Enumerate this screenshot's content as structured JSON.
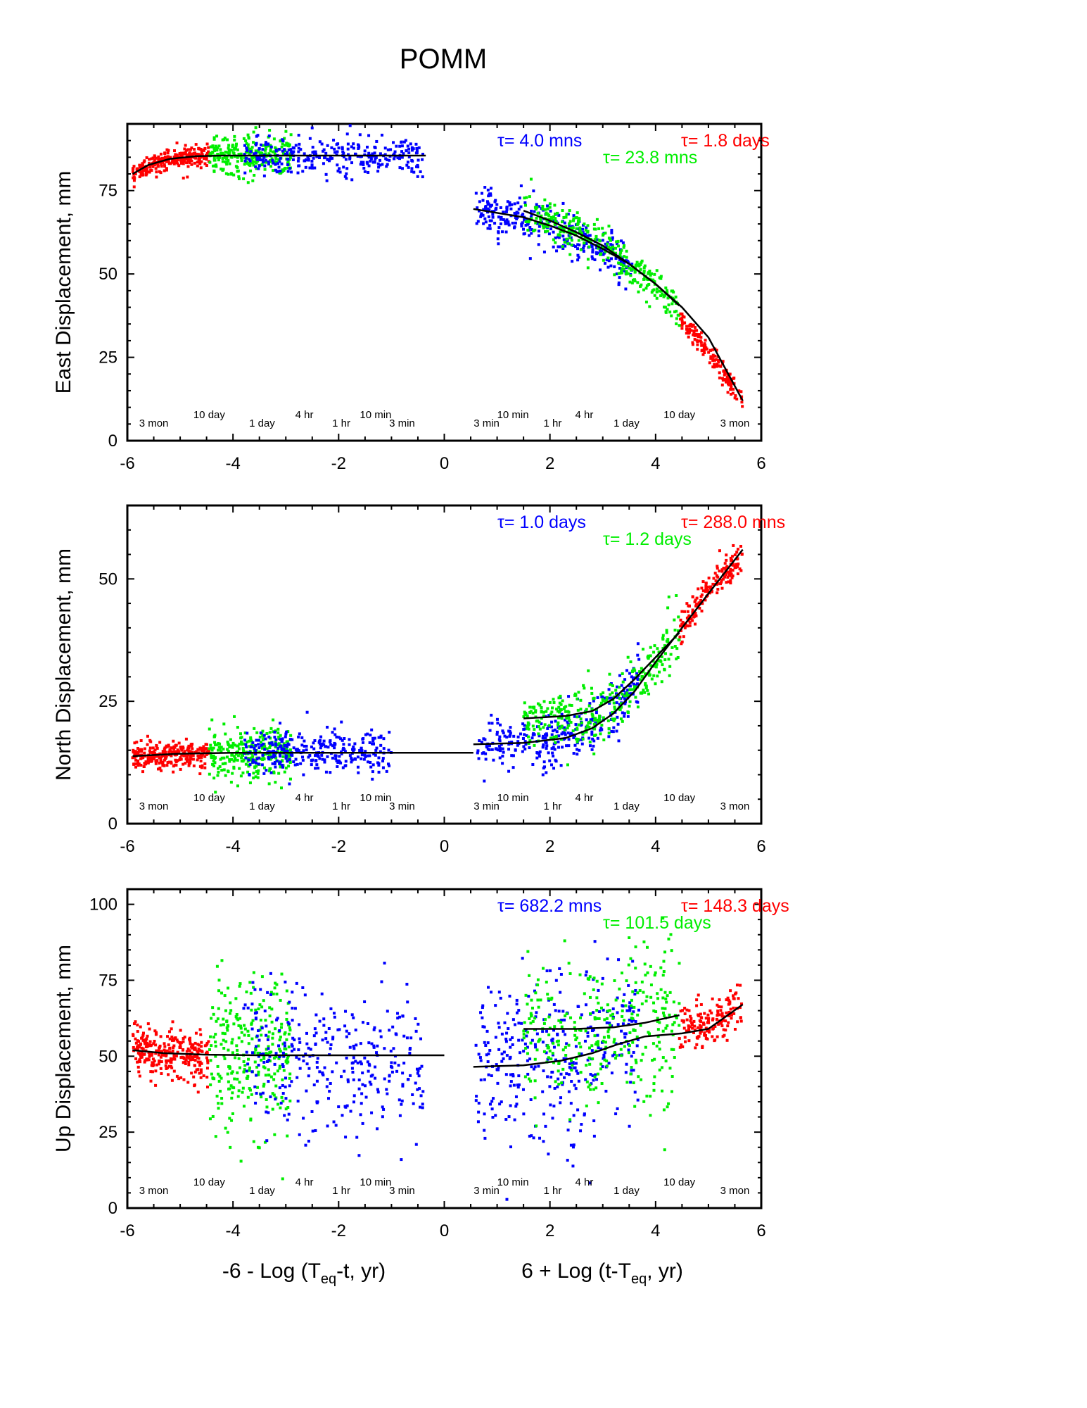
{
  "figure": {
    "title": "POMM",
    "xlabel_left": "-6 - Log (T",
    "xlabel_left_sub": "eq",
    "xlabel_left_tail": "-t, yr)",
    "xlabel_right": "6 + Log (t-T",
    "xlabel_right_sub": "eq",
    "xlabel_right_tail": ", yr)"
  },
  "colors": {
    "red": "#ff0000",
    "green": "#00ee00",
    "blue": "#0000ff",
    "fit": "#000000"
  },
  "chart_data": [
    {
      "type": "scatter",
      "ylabel": "East Displacement, mm",
      "xlim": [
        -6,
        6
      ],
      "ylim": [
        0,
        95
      ],
      "xticks": [
        -6,
        -4,
        -2,
        0,
        2,
        4,
        6
      ],
      "yticks": [
        0,
        25,
        50,
        75
      ],
      "time_labels_left": [
        "3 mon",
        "10 day",
        "1 day",
        "4 hr",
        "1 hr",
        "10 min",
        "3 min"
      ],
      "time_labels_right": [
        "3 min",
        "10 min",
        "1 hr",
        "4 hr",
        "1 day",
        "10 day",
        "3 mon"
      ],
      "tau": [
        {
          "text": "τ= 4.0 mns",
          "color": "blue"
        },
        {
          "text": "τ= 23.8 mns",
          "color": "green"
        },
        {
          "text": "τ= 1.8 days",
          "color": "red"
        }
      ],
      "series": [
        {
          "color": "red",
          "x_range": [
            -5.9,
            -4.45
          ],
          "trend": [
            [
              -5.9,
              80
            ],
            [
              -5.5,
              83.5
            ],
            [
              -5.0,
              85
            ],
            [
              -4.45,
              85.5
            ]
          ],
          "noise": 1.5,
          "n": 260
        },
        {
          "color": "green",
          "x_range": [
            -4.45,
            -2.9
          ],
          "trend": [
            [
              -4.45,
              85.5
            ],
            [
              -2.9,
              85.5
            ]
          ],
          "noise": 3.0,
          "n": 260
        },
        {
          "color": "blue",
          "x_range": [
            -3.8,
            -0.4
          ],
          "trend": [
            [
              -3.8,
              85.5
            ],
            [
              -0.4,
              85.5
            ]
          ],
          "noise": 3.0,
          "n": 300
        },
        {
          "color": "blue",
          "x_range": [
            0.6,
            3.6
          ],
          "trend": [
            [
              0.6,
              69
            ],
            [
              1.5,
              67
            ],
            [
              2.5,
              61
            ],
            [
              3.0,
              57
            ],
            [
              3.6,
              52
            ]
          ],
          "noise": 3.0,
          "n": 320
        },
        {
          "color": "green",
          "x_range": [
            1.5,
            4.45
          ],
          "trend": [
            [
              1.5,
              69
            ],
            [
              2.5,
              63
            ],
            [
              3.0,
              59
            ],
            [
              3.6,
              51
            ],
            [
              4.45,
              40
            ]
          ],
          "noise": 3.0,
          "n": 320
        },
        {
          "color": "red",
          "x_range": [
            4.45,
            5.65
          ],
          "trend": [
            [
              4.45,
              37
            ],
            [
              5.0,
              27
            ],
            [
              5.65,
              12
            ]
          ],
          "noise": 1.5,
          "n": 160
        }
      ],
      "fit_lines": [
        [
          [
            -5.9,
            80
          ],
          [
            -5.6,
            82.7
          ],
          [
            -5.2,
            84.5
          ],
          [
            -4.7,
            85.3
          ],
          [
            -4.2,
            85.5
          ],
          [
            -0.35,
            85.5
          ]
        ],
        [
          [
            0.55,
            69.5
          ],
          [
            1.5,
            67
          ],
          [
            2.0,
            64.5
          ],
          [
            2.5,
            61.5
          ],
          [
            3.0,
            57.5
          ],
          [
            3.5,
            53
          ],
          [
            4.0,
            47
          ],
          [
            4.5,
            40
          ],
          [
            5.0,
            31
          ],
          [
            5.65,
            12
          ]
        ],
        [
          [
            1.5,
            69
          ],
          [
            2.0,
            66
          ],
          [
            2.5,
            62.5
          ],
          [
            3.0,
            58.5
          ],
          [
            3.5,
            53
          ],
          [
            4.0,
            47
          ],
          [
            4.45,
            40.5
          ]
        ]
      ]
    },
    {
      "type": "scatter",
      "ylabel": "North Displacement, mm",
      "xlim": [
        -6,
        6
      ],
      "ylim": [
        0,
        65
      ],
      "xticks": [
        -6,
        -4,
        -2,
        0,
        2,
        4,
        6
      ],
      "yticks": [
        0,
        25,
        50
      ],
      "time_labels_left": [
        "3 mon",
        "10 day",
        "1 day",
        "4 hr",
        "1 hr",
        "10 min",
        "3 min"
      ],
      "time_labels_right": [
        "3 min",
        "10 min",
        "1 hr",
        "4 hr",
        "1 day",
        "10 day",
        "3 mon"
      ],
      "tau": [
        {
          "text": "τ= 1.0 days",
          "color": "blue"
        },
        {
          "text": "τ= 1.2 days",
          "color": "green"
        },
        {
          "text": "τ= 288.0 mns",
          "color": "red"
        }
      ],
      "series": [
        {
          "color": "red",
          "x_range": [
            -5.9,
            -4.45
          ],
          "trend": [
            [
              -5.9,
              13.5
            ],
            [
              -4.45,
              14.5
            ]
          ],
          "noise": 1.3,
          "n": 260
        },
        {
          "color": "green",
          "x_range": [
            -4.45,
            -2.9
          ],
          "trend": [
            [
              -4.45,
              14.5
            ],
            [
              -2.9,
              14.5
            ]
          ],
          "noise": 2.8,
          "n": 260
        },
        {
          "color": "blue",
          "x_range": [
            -3.8,
            -1.0
          ],
          "trend": [
            [
              -3.8,
              14.5
            ],
            [
              -1.0,
              14.5
            ]
          ],
          "noise": 2.2,
          "n": 300
        },
        {
          "color": "blue",
          "x_range": [
            0.6,
            3.7
          ],
          "trend": [
            [
              0.6,
              16
            ],
            [
              2.0,
              17
            ],
            [
              2.8,
              20
            ],
            [
              3.3,
              25
            ],
            [
              3.7,
              30
            ]
          ],
          "noise": 2.8,
          "n": 320
        },
        {
          "color": "green",
          "x_range": [
            1.5,
            4.45
          ],
          "trend": [
            [
              1.5,
              21
            ],
            [
              2.8,
              22
            ],
            [
              3.3,
              25
            ],
            [
              3.8,
              31
            ],
            [
              4.45,
              39
            ]
          ],
          "noise": 3.0,
          "n": 320
        },
        {
          "color": "red",
          "x_range": [
            4.45,
            5.65
          ],
          "trend": [
            [
              4.45,
              39
            ],
            [
              5.0,
              48
            ],
            [
              5.65,
              54
            ]
          ],
          "noise": 1.6,
          "n": 160
        }
      ],
      "fit_lines": [
        [
          [
            -5.9,
            13.8
          ],
          [
            -5.0,
            14.3
          ],
          [
            -4.0,
            14.5
          ],
          [
            0.55,
            14.5
          ]
        ],
        [
          [
            0.55,
            16.2
          ],
          [
            1.5,
            16.5
          ],
          [
            2.3,
            17.5
          ],
          [
            2.8,
            19.5
          ],
          [
            3.2,
            22.5
          ],
          [
            3.6,
            27
          ],
          [
            4.0,
            33
          ],
          [
            4.5,
            40
          ],
          [
            5.0,
            47
          ],
          [
            5.65,
            56
          ]
        ],
        [
          [
            1.5,
            21.5
          ],
          [
            2.3,
            22
          ],
          [
            2.8,
            23
          ],
          [
            3.2,
            25.5
          ],
          [
            3.6,
            29.5
          ],
          [
            4.0,
            34
          ],
          [
            4.45,
            39
          ]
        ]
      ]
    },
    {
      "type": "scatter",
      "ylabel": "Up Displacement, mm",
      "xlim": [
        -6,
        6
      ],
      "ylim": [
        0,
        105
      ],
      "xticks": [
        -6,
        -4,
        -2,
        0,
        2,
        4,
        6
      ],
      "yticks": [
        0,
        25,
        50,
        75,
        100
      ],
      "time_labels_left": [
        "3 mon",
        "10 day",
        "1 day",
        "4 hr",
        "1 hr",
        "10 min",
        "3 min"
      ],
      "time_labels_right": [
        "3 min",
        "10 min",
        "1 hr",
        "4 hr",
        "1 day",
        "10 day",
        "3 mon"
      ],
      "tau": [
        {
          "text": "τ= 682.2 mns",
          "color": "blue"
        },
        {
          "text": "τ= 101.5 days",
          "color": "green"
        },
        {
          "text": "τ= 148.3 days",
          "color": "red"
        }
      ],
      "series": [
        {
          "color": "red",
          "x_range": [
            -5.9,
            -4.45
          ],
          "trend": [
            [
              -5.9,
              52
            ],
            [
              -4.45,
              50
            ]
          ],
          "noise": 4.0,
          "n": 280
        },
        {
          "color": "green",
          "x_range": [
            -4.45,
            -2.9
          ],
          "trend": [
            [
              -4.45,
              50
            ],
            [
              -2.9,
              50
            ]
          ],
          "noise": 13.0,
          "n": 280
        },
        {
          "color": "blue",
          "x_range": [
            -3.8,
            -0.4
          ],
          "trend": [
            [
              -3.8,
              55
            ],
            [
              -3.0,
              50
            ],
            [
              -2.0,
              45
            ],
            [
              -0.4,
              45
            ]
          ],
          "noise": 12.0,
          "n": 320
        },
        {
          "color": "blue",
          "x_range": [
            0.6,
            3.7
          ],
          "trend": [
            [
              0.6,
              47
            ],
            [
              2.0,
              48
            ],
            [
              3.0,
              52
            ],
            [
              3.7,
              57
            ]
          ],
          "noise": 13.0,
          "n": 340
        },
        {
          "color": "green",
          "x_range": [
            1.5,
            4.45
          ],
          "trend": [
            [
              1.5,
              58
            ],
            [
              3.0,
              58
            ],
            [
              4.45,
              62
            ]
          ],
          "noise": 13.0,
          "n": 320
        },
        {
          "color": "red",
          "x_range": [
            4.45,
            5.65
          ],
          "trend": [
            [
              4.45,
              58
            ],
            [
              5.0,
              60
            ],
            [
              5.65,
              66
            ]
          ],
          "noise": 4.0,
          "n": 160
        }
      ],
      "fit_lines": [
        [
          [
            -5.9,
            52
          ],
          [
            -5.3,
            51
          ],
          [
            -4.5,
            50.5
          ],
          [
            -3.5,
            50.3
          ],
          [
            0.0,
            50.3
          ]
        ],
        [
          [
            0.55,
            46.5
          ],
          [
            1.5,
            47
          ],
          [
            2.2,
            48.5
          ],
          [
            2.8,
            51
          ],
          [
            3.3,
            54
          ],
          [
            3.8,
            56.5
          ],
          [
            4.5,
            57.5
          ],
          [
            5.0,
            59
          ],
          [
            5.65,
            67
          ]
        ],
        [
          [
            1.5,
            59
          ],
          [
            2.5,
            59
          ],
          [
            3.2,
            59.5
          ],
          [
            3.8,
            61
          ],
          [
            4.45,
            63.5
          ]
        ]
      ]
    }
  ]
}
